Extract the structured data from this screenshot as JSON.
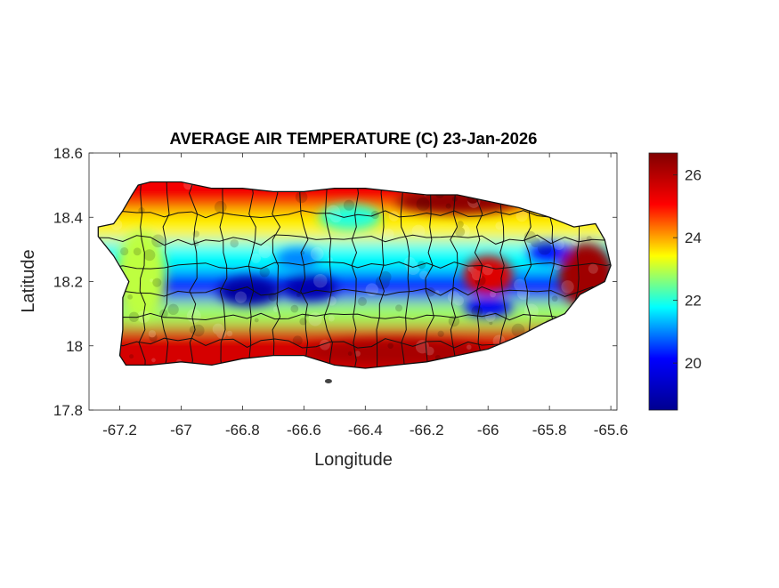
{
  "chart_data": {
    "type": "heatmap",
    "title": "AVERAGE AIR TEMPERATURE (C) 23-Jan-2026",
    "xlabel": "Longitude",
    "ylabel": "Latitude",
    "xlim": [
      -67.3,
      -65.58
    ],
    "ylim": [
      17.8,
      18.6
    ],
    "xticks": [
      -67.2,
      -67,
      -66.8,
      -66.6,
      -66.4,
      -66.2,
      -66,
      -65.8,
      -65.6
    ],
    "yticks": [
      17.8,
      18,
      18.2,
      18.4,
      18.6
    ],
    "xtick_labels": [
      "-67.2",
      "-67",
      "-66.8",
      "-66.6",
      "-66.4",
      "-66.2",
      "-66",
      "-65.8",
      "-65.6"
    ],
    "ytick_labels": [
      "17.8",
      "18",
      "18.2",
      "18.4",
      "18.6"
    ],
    "grid": false,
    "colorbar": {
      "colormap": "jet",
      "limits": [
        18.5,
        26.7
      ],
      "ticks": [
        20,
        22,
        24,
        26
      ],
      "tick_labels": [
        "20",
        "22",
        "24",
        "26"
      ]
    },
    "colormap_stops": [
      "#00008f",
      "#0000ff",
      "#00ffff",
      "#ffff00",
      "#ff0000",
      "#800000"
    ],
    "island_outline": [
      [
        -67.27,
        18.37
      ],
      [
        -67.22,
        18.38
      ],
      [
        -67.19,
        18.42
      ],
      [
        -67.16,
        18.47
      ],
      [
        -67.14,
        18.5
      ],
      [
        -67.1,
        18.51
      ],
      [
        -67.0,
        18.51
      ],
      [
        -66.9,
        18.49
      ],
      [
        -66.8,
        18.49
      ],
      [
        -66.7,
        18.48
      ],
      [
        -66.6,
        18.48
      ],
      [
        -66.5,
        18.49
      ],
      [
        -66.4,
        18.49
      ],
      [
        -66.3,
        18.48
      ],
      [
        -66.2,
        18.47
      ],
      [
        -66.1,
        18.47
      ],
      [
        -66.0,
        18.45
      ],
      [
        -65.9,
        18.43
      ],
      [
        -65.8,
        18.4
      ],
      [
        -65.72,
        18.37
      ],
      [
        -65.65,
        18.38
      ],
      [
        -65.62,
        18.33
      ],
      [
        -65.6,
        18.25
      ],
      [
        -65.62,
        18.2
      ],
      [
        -65.7,
        18.16
      ],
      [
        -65.75,
        18.1
      ],
      [
        -65.82,
        18.07
      ],
      [
        -65.9,
        18.03
      ],
      [
        -66.0,
        17.99
      ],
      [
        -66.1,
        17.97
      ],
      [
        -66.2,
        17.95
      ],
      [
        -66.3,
        17.94
      ],
      [
        -66.4,
        17.93
      ],
      [
        -66.5,
        17.94
      ],
      [
        -66.6,
        17.97
      ],
      [
        -66.7,
        17.97
      ],
      [
        -66.8,
        17.96
      ],
      [
        -66.9,
        17.94
      ],
      [
        -67.0,
        17.95
      ],
      [
        -67.1,
        17.94
      ],
      [
        -67.18,
        17.94
      ],
      [
        -67.2,
        17.97
      ],
      [
        -67.19,
        18.05
      ],
      [
        -67.19,
        18.15
      ],
      [
        -67.17,
        18.2
      ],
      [
        -67.22,
        18.28
      ],
      [
        -67.27,
        18.34
      ]
    ],
    "temperature_bands": [
      {
        "lat": 18.46,
        "temp": 25.2
      },
      {
        "lat": 18.36,
        "temp": 23.5
      },
      {
        "lat": 18.27,
        "temp": 21.8
      },
      {
        "lat": 18.17,
        "temp": 20.2
      },
      {
        "lat": 18.09,
        "temp": 22.8
      },
      {
        "lat": 18.01,
        "temp": 25.6
      }
    ],
    "temperature_blobs": [
      {
        "lon": -66.78,
        "lat": 18.17,
        "temp": 18.8,
        "rx": 0.1,
        "ry": 0.045
      },
      {
        "lon": -66.58,
        "lat": 18.18,
        "temp": 19.0,
        "rx": 0.09,
        "ry": 0.04
      },
      {
        "lon": -66.62,
        "lat": 18.27,
        "temp": 21.0,
        "rx": 0.07,
        "ry": 0.035
      },
      {
        "lon": -66.0,
        "lat": 18.12,
        "temp": 20.0,
        "rx": 0.08,
        "ry": 0.03
      },
      {
        "lon": -65.8,
        "lat": 18.29,
        "temp": 20.2,
        "rx": 0.07,
        "ry": 0.03
      },
      {
        "lon": -66.1,
        "lat": 18.45,
        "temp": 26.5,
        "rx": 0.2,
        "ry": 0.04
      },
      {
        "lon": -65.68,
        "lat": 18.22,
        "temp": 26.3,
        "rx": 0.09,
        "ry": 0.1
      },
      {
        "lon": -66.0,
        "lat": 18.22,
        "temp": 25.5,
        "rx": 0.08,
        "ry": 0.06
      },
      {
        "lon": -67.13,
        "lat": 18.22,
        "temp": 23.0,
        "rx": 0.08,
        "ry": 0.14
      },
      {
        "lon": -66.3,
        "lat": 17.98,
        "temp": 26.2,
        "rx": 0.3,
        "ry": 0.04
      },
      {
        "lon": -66.45,
        "lat": 18.4,
        "temp": 22.0,
        "rx": 0.1,
        "ry": 0.04
      }
    ]
  }
}
